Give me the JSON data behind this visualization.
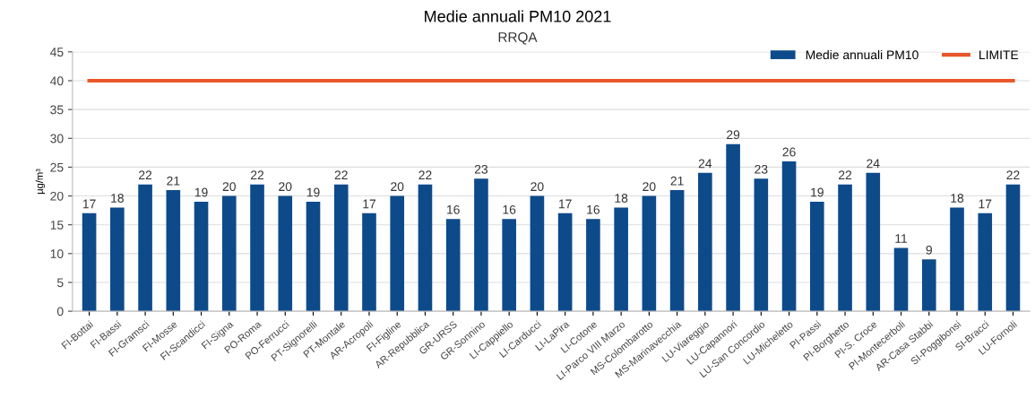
{
  "chart_data": {
    "type": "bar",
    "title": "Medie annuali PM10 2021",
    "subtitle": "RRQA",
    "ylabel": "µg/m³",
    "categories": [
      "FI-Bottai",
      "FI-Bassi",
      "FI-Gramsci",
      "FI-Mosse",
      "FI-Scandicci",
      "FI-Signa",
      "PO-Roma",
      "PO-Ferrucci",
      "PT-Signorelli",
      "PT-Montale",
      "AR-Acropoli",
      "FI-Figline",
      "AR-Repubblica",
      "GR-URSS",
      "GR-Sonnino",
      "LI-Cappiello",
      "LI-Carducci",
      "LI-LaPira",
      "LI-Cotone",
      "LI-Parco VIII Marzo",
      "MS-Colombarotto",
      "MS-Marinavecchia",
      "LU-Viareggio",
      "LU-Capannori",
      "LU-San Concordio",
      "LU-Micheletto",
      "PI-Passi",
      "PI-Borghetto",
      "PI-S. Croce",
      "PI-Montecerboli",
      "AR-Casa Stabbi",
      "SI-Poggibonsi",
      "SI-Bracci",
      "LU-Fornoli"
    ],
    "series": [
      {
        "name": "Medie annuali PM10",
        "color": "#0d4a8a",
        "values": [
          17,
          18,
          22,
          21,
          19,
          20,
          22,
          20,
          19,
          22,
          17,
          20,
          22,
          16,
          23,
          16,
          20,
          17,
          16,
          18,
          20,
          21,
          24,
          29,
          23,
          26,
          19,
          22,
          24,
          11,
          9,
          18,
          17,
          22
        ],
        "value_labels": [
          "17",
          "18",
          "22",
          "21",
          "19",
          "20",
          "22",
          "20",
          "19",
          "22",
          "17",
          "20",
          "22",
          "16",
          "23",
          "16",
          "20",
          "17",
          "16",
          "18",
          "20",
          "21",
          "24",
          "29",
          "23",
          "26",
          "19",
          "22",
          "24",
          "11",
          "9",
          "18",
          "17",
          "22"
        ]
      },
      {
        "name": "LIMITE",
        "type": "line",
        "color": "#e8572a",
        "values": [
          40,
          40,
          40,
          40,
          40,
          40,
          40,
          40,
          40,
          40,
          40,
          40,
          40,
          40,
          40,
          40,
          40,
          40,
          40,
          40,
          40,
          40,
          40,
          40,
          40,
          40,
          40,
          40,
          40,
          40,
          40,
          40,
          40,
          40
        ]
      }
    ],
    "ylim": [
      0,
      45
    ],
    "yticks": [
      0,
      5,
      10,
      15,
      20,
      25,
      30,
      35,
      40,
      45
    ],
    "grid": "y",
    "legend": "top right",
    "marker": "none",
    "line_style": "solid"
  }
}
